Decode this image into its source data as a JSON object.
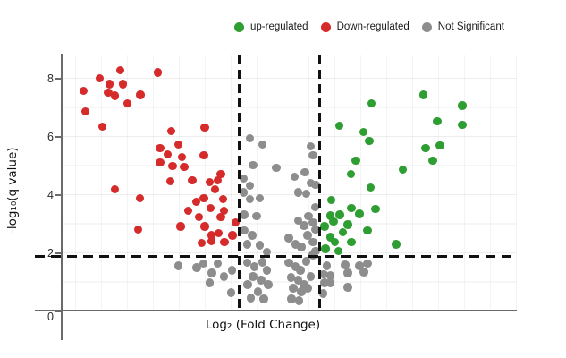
{
  "legend": {
    "items": [
      {
        "label": "up-regulated",
        "color": "#2e9e33"
      },
      {
        "label": "Down-regulated",
        "color": "#d62b2b"
      },
      {
        "label": "Not Significant",
        "color": "#8d8d8d"
      }
    ]
  },
  "axes": {
    "x_label": "Log₂ (Fold Change)",
    "y_label": "-log₁₀(q value)"
  },
  "chart_data": {
    "type": "scatter",
    "title": "",
    "xlabel": "Log₂ (Fold Change)",
    "ylabel": "-log₁₀(q value)",
    "xlim": [
      -5.4,
      5.9
    ],
    "ylim": [
      0,
      8.8
    ],
    "yticks": [
      0,
      2,
      4,
      6,
      8
    ],
    "xticks": [],
    "grid": true,
    "legend_position": "top",
    "thresholds": {
      "vlines_x": [
        -1,
        1
      ],
      "hline_y": 1.9,
      "line_style": "dashed",
      "line_color": "#111111"
    },
    "series": [
      {
        "name": "up-regulated",
        "color": "#2e9e33",
        "points": [
          [
            3.57,
            7.44
          ],
          [
            4.54,
            7.07
          ],
          [
            3.92,
            6.54
          ],
          [
            4.54,
            6.42
          ],
          [
            3.63,
            5.62
          ],
          [
            3.99,
            5.71
          ],
          [
            3.81,
            5.19
          ],
          [
            3.06,
            4.88
          ],
          [
            2.28,
            7.16
          ],
          [
            2.08,
            6.17
          ],
          [
            2.23,
            5.86
          ],
          [
            1.48,
            6.39
          ],
          [
            1.9,
            5.19
          ],
          [
            1.77,
            4.72
          ],
          [
            2.26,
            4.26
          ],
          [
            1.28,
            3.83
          ],
          [
            1.79,
            3.55
          ],
          [
            1.99,
            3.36
          ],
          [
            2.39,
            3.52
          ],
          [
            1.26,
            3.3
          ],
          [
            1.5,
            3.33
          ],
          [
            1.34,
            3.09
          ],
          [
            1.12,
            2.93
          ],
          [
            1.57,
            2.72
          ],
          [
            1.7,
            2.99
          ],
          [
            2.19,
            2.78
          ],
          [
            1.26,
            2.56
          ],
          [
            1.37,
            2.38
          ],
          [
            1.79,
            2.38
          ],
          [
            1.14,
            2.16
          ],
          [
            1.46,
            2.07
          ],
          [
            2.9,
            2.31
          ]
        ]
      },
      {
        "name": "Down-regulated",
        "color": "#d62b2b",
        "points": [
          [
            -4.88,
            7.59
          ],
          [
            -4.83,
            6.88
          ],
          [
            -4.48,
            8.02
          ],
          [
            -4.23,
            7.81
          ],
          [
            -4.26,
            7.53
          ],
          [
            -4.1,
            7.41
          ],
          [
            -3.9,
            7.81
          ],
          [
            -3.97,
            8.3
          ],
          [
            -3.79,
            7.16
          ],
          [
            -3.46,
            7.44
          ],
          [
            -3.03,
            8.21
          ],
          [
            -4.41,
            6.36
          ],
          [
            -2.7,
            6.2
          ],
          [
            -2.52,
            5.74
          ],
          [
            -2.97,
            5.62
          ],
          [
            -2.79,
            5.4
          ],
          [
            -2.97,
            5.12
          ],
          [
            -2.66,
            5.0
          ],
          [
            -2.43,
            5.31
          ],
          [
            -2.37,
            4.97
          ],
          [
            -2.72,
            4.48
          ],
          [
            -4.1,
            4.2
          ],
          [
            -3.48,
            3.89
          ],
          [
            -3.52,
            2.81
          ],
          [
            -1.86,
            6.33
          ],
          [
            -1.88,
            5.37
          ],
          [
            -2.17,
            4.51
          ],
          [
            -1.46,
            4.72
          ],
          [
            -1.74,
            4.44
          ],
          [
            -1.54,
            4.51
          ],
          [
            -1.61,
            4.2
          ],
          [
            -2.08,
            3.77
          ],
          [
            -1.88,
            3.89
          ],
          [
            -2.28,
            3.46
          ],
          [
            -2.01,
            3.24
          ],
          [
            -1.72,
            3.55
          ],
          [
            -1.39,
            3.46
          ],
          [
            -1.46,
            3.24
          ],
          [
            -1.41,
            3.86
          ],
          [
            -2.46,
            2.93
          ],
          [
            -1.86,
            2.93
          ],
          [
            -1.7,
            2.62
          ],
          [
            -1.52,
            2.69
          ],
          [
            -1.94,
            2.35
          ],
          [
            -1.7,
            2.41
          ],
          [
            -1.37,
            2.38
          ],
          [
            -1.17,
            2.62
          ],
          [
            -1.1,
            3.06
          ]
        ]
      },
      {
        "name": "Not Significant",
        "color": "#8d8d8d",
        "points": [
          [
            -0.74,
            5.96
          ],
          [
            -0.43,
            5.74
          ],
          [
            -0.66,
            5.03
          ],
          [
            -0.08,
            4.94
          ],
          [
            -0.9,
            4.57
          ],
          [
            -0.74,
            4.32
          ],
          [
            0.37,
            4.63
          ],
          [
            0.63,
            4.78
          ],
          [
            0.77,
            5.68
          ],
          [
            0.83,
            5.37
          ],
          [
            -0.9,
            4.1
          ],
          [
            -0.74,
            3.86
          ],
          [
            -0.5,
            3.89
          ],
          [
            0.46,
            4.1
          ],
          [
            0.66,
            4.04
          ],
          [
            0.77,
            4.41
          ],
          [
            -0.88,
            3.33
          ],
          [
            -0.57,
            3.27
          ],
          [
            0.46,
            3.12
          ],
          [
            0.61,
            2.96
          ],
          [
            0.72,
            3.27
          ],
          [
            -0.88,
            2.78
          ],
          [
            -0.68,
            2.62
          ],
          [
            -0.5,
            2.28
          ],
          [
            -0.32,
            2.04
          ],
          [
            0.23,
            2.53
          ],
          [
            0.39,
            2.31
          ],
          [
            0.54,
            2.22
          ],
          [
            0.7,
            2.62
          ],
          [
            0.83,
            1.94
          ],
          [
            -0.81,
            2.31
          ],
          [
            0.88,
            3.58
          ],
          [
            0.83,
            3.06
          ],
          [
            0.9,
            2.81
          ],
          [
            0.83,
            2.38
          ],
          [
            0.9,
            2.07
          ],
          [
            0.9,
            4.35
          ],
          [
            -2.52,
            1.57
          ],
          [
            -2.06,
            1.51
          ],
          [
            -1.9,
            1.64
          ],
          [
            -1.68,
            1.33
          ],
          [
            -1.54,
            1.64
          ],
          [
            -1.39,
            1.2
          ],
          [
            -1.19,
            1.42
          ],
          [
            -1.74,
            0.99
          ],
          [
            -1.21,
            0.65
          ],
          [
            -0.81,
            1.67
          ],
          [
            -0.63,
            1.54
          ],
          [
            -0.43,
            1.7
          ],
          [
            -0.32,
            1.42
          ],
          [
            -0.66,
            1.2
          ],
          [
            -0.46,
            1.08
          ],
          [
            -0.79,
            0.93
          ],
          [
            -0.28,
            0.93
          ],
          [
            -0.54,
            0.68
          ],
          [
            -0.39,
            0.43
          ],
          [
            -0.72,
            0.46
          ],
          [
            0.23,
            1.67
          ],
          [
            0.39,
            1.54
          ],
          [
            0.52,
            1.42
          ],
          [
            0.66,
            1.73
          ],
          [
            0.28,
            1.17
          ],
          [
            0.46,
            1.08
          ],
          [
            0.61,
            0.93
          ],
          [
            0.34,
            0.8
          ],
          [
            0.54,
            0.68
          ],
          [
            0.7,
            0.8
          ],
          [
            0.77,
            1.2
          ],
          [
            0.3,
            0.43
          ],
          [
            0.48,
            0.37
          ],
          [
            1.17,
            1.57
          ],
          [
            1.63,
            1.6
          ],
          [
            1.99,
            1.57
          ],
          [
            2.19,
            1.64
          ],
          [
            1.7,
            1.33
          ],
          [
            2.1,
            1.36
          ],
          [
            1.1,
            1.27
          ],
          [
            1.26,
            1.23
          ],
          [
            1.12,
            0.99
          ],
          [
            1.26,
            0.99
          ],
          [
            1.7,
            0.83
          ],
          [
            1.08,
            0.62
          ]
        ]
      }
    ]
  }
}
